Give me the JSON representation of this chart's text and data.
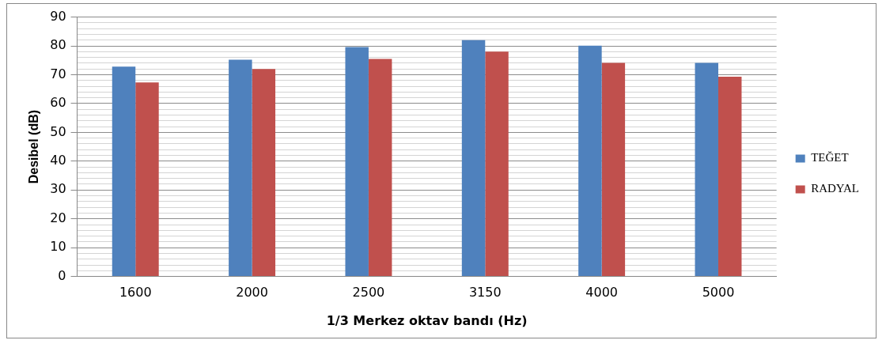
{
  "chart_data": {
    "type": "bar",
    "xlabel": "1/3 Merkez oktav bandı (Hz)",
    "ylabel": "Desibel (dB)",
    "categories": [
      "1600",
      "2000",
      "2500",
      "3150",
      "4000",
      "5000"
    ],
    "series": [
      {
        "name": "TEĞET",
        "color": "#4f81bd",
        "values": [
          72.8,
          75.2,
          79.6,
          82.0,
          80.1,
          74.1
        ]
      },
      {
        "name": "RADYAL",
        "color": "#c0504d",
        "values": [
          67.3,
          72.0,
          75.5,
          78.0,
          74.1,
          69.3
        ]
      }
    ],
    "ylim": [
      0,
      90
    ],
    "yticks": [
      0,
      {
        "value": 2,
        "label": null
      },
      {
        "value": 4,
        "label": null
      },
      {
        "value": 6,
        "label": null
      },
      {
        "value": 8,
        "label": null
      },
      10,
      {
        "value": 12,
        "label": null
      },
      {
        "value": 14,
        "label": null
      },
      {
        "value": 16,
        "label": null
      },
      {
        "value": 18,
        "label": null
      },
      20,
      {
        "value": 22,
        "label": null
      },
      {
        "value": 24,
        "label": null
      },
      {
        "value": 26,
        "label": null
      },
      {
        "value": 28,
        "label": null
      },
      30,
      {
        "value": 32,
        "label": null
      },
      {
        "value": 34,
        "label": null
      },
      {
        "value": 36,
        "label": null
      },
      {
        "value": 38,
        "label": null
      },
      40,
      {
        "value": 42,
        "label": null
      },
      {
        "value": 44,
        "label": null
      },
      {
        "value": 46,
        "label": null
      },
      {
        "value": 48,
        "label": null
      },
      50,
      {
        "value": 52,
        "label": null
      },
      {
        "value": 54,
        "label": null
      },
      {
        "value": 56,
        "label": null
      },
      {
        "value": 58,
        "label": null
      },
      60,
      {
        "value": 62,
        "label": null
      },
      {
        "value": 64,
        "label": null
      },
      {
        "value": 66,
        "label": null
      },
      {
        "value": 68,
        "label": null
      },
      70,
      {
        "value": 72,
        "label": null
      },
      {
        "value": 74,
        "label": null
      },
      {
        "value": 76,
        "label": null
      },
      {
        "value": 78,
        "label": null
      },
      80,
      {
        "value": 82,
        "label": null
      },
      {
        "value": 84,
        "label": null
      },
      {
        "value": 86,
        "label": null
      },
      {
        "value": 88,
        "label": null
      },
      90
    ],
    "grid": "y",
    "legend": "right"
  }
}
